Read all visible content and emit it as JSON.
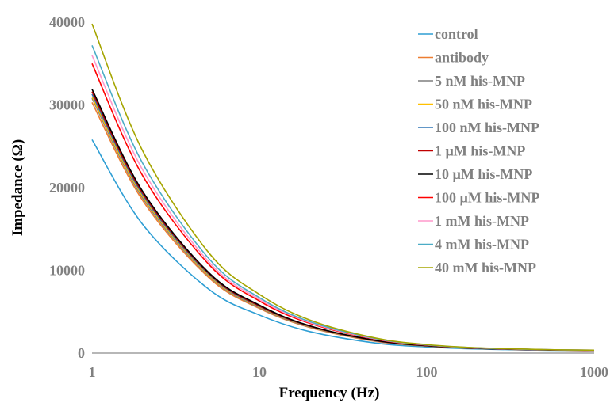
{
  "chart_data": {
    "type": "line",
    "title": "",
    "xlabel": "Frequency (Hz)",
    "ylabel": "Impedance (Ω)",
    "x_scale": "log",
    "xlim": [
      1,
      1000
    ],
    "ylim": [
      0,
      40000
    ],
    "x_ticks": [
      1,
      10,
      100,
      1000
    ],
    "x_tick_labels": [
      "1",
      "10",
      "100",
      "1000"
    ],
    "y_ticks": [
      0,
      10000,
      20000,
      30000,
      40000
    ],
    "y_tick_labels": [
      "0",
      "10000",
      "20000",
      "30000",
      "40000"
    ],
    "grid": false,
    "legend_position": "top-right",
    "x": [
      1,
      2,
      5,
      10,
      20,
      50,
      100,
      200,
      500,
      1000
    ],
    "series": [
      {
        "name": "control",
        "color": "#2E9ED4",
        "values": [
          25800,
          15600,
          7700,
          4600,
          2600,
          1200,
          750,
          500,
          350,
          300
        ]
      },
      {
        "name": "antibody",
        "color": "#ED7D31",
        "values": [
          30300,
          18500,
          9100,
          5400,
          3100,
          1400,
          850,
          550,
          380,
          320
        ]
      },
      {
        "name": "5 nM his-MNP",
        "color": "#7F7F7F",
        "values": [
          30800,
          18800,
          9300,
          5500,
          3150,
          1450,
          870,
          560,
          385,
          325
        ]
      },
      {
        "name": "50 nM his-MNP",
        "color": "#FFC000",
        "values": [
          31000,
          19000,
          9400,
          5600,
          3200,
          1470,
          880,
          565,
          390,
          328
        ]
      },
      {
        "name": "100 nM his-MNP",
        "color": "#2E75B6",
        "values": [
          31300,
          19200,
          9500,
          5650,
          3230,
          1480,
          885,
          570,
          392,
          330
        ]
      },
      {
        "name": "1 µM his-MNP",
        "color": "#C00000",
        "values": [
          31600,
          19400,
          9600,
          5700,
          3260,
          1500,
          890,
          575,
          395,
          332
        ]
      },
      {
        "name": "10 µM his-MNP",
        "color": "#000000",
        "values": [
          31900,
          19600,
          9700,
          5800,
          3300,
          1520,
          900,
          580,
          398,
          335
        ]
      },
      {
        "name": "100 µM his-MNP",
        "color": "#FF0000",
        "values": [
          35000,
          21500,
          10700,
          6300,
          3600,
          1650,
          960,
          610,
          415,
          345
        ]
      },
      {
        "name": "1 mM his-MNP",
        "color": "#FF99CC",
        "values": [
          36000,
          22200,
          11000,
          6500,
          3700,
          1700,
          980,
          620,
          420,
          348
        ]
      },
      {
        "name": "4 mM his-MNP",
        "color": "#4BACC6",
        "values": [
          37200,
          23000,
          11400,
          6700,
          3800,
          1740,
          1000,
          630,
          425,
          350
        ]
      },
      {
        "name": "40 mM his-MNP",
        "color": "#A5A500",
        "values": [
          39800,
          24500,
          12100,
          7100,
          4000,
          1800,
          1030,
          645,
          430,
          355
        ]
      }
    ]
  }
}
